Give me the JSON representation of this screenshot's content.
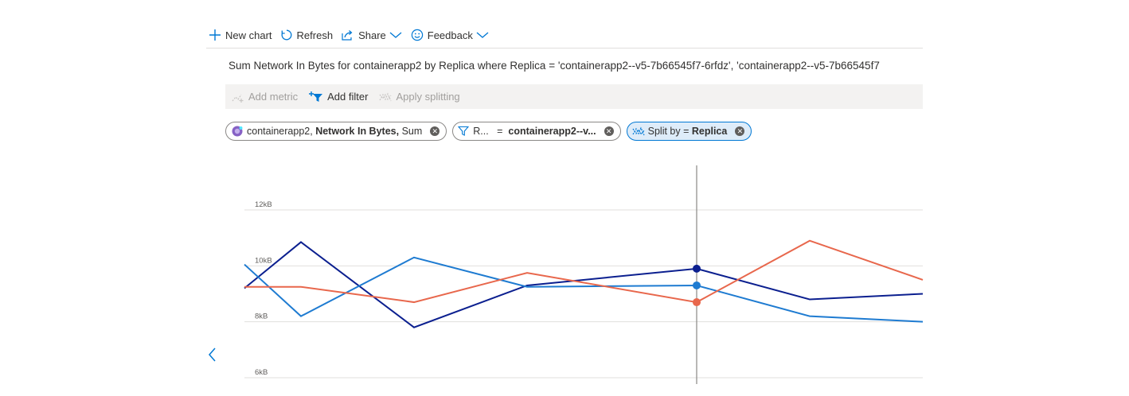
{
  "toolbar": {
    "new_chart": "New chart",
    "refresh": "Refresh",
    "share": "Share",
    "feedback": "Feedback"
  },
  "chart_title": "Sum Network In Bytes for containerapp2 by Replica where Replica = 'containerapp2--v5-7b66545f7-6rfdz', 'containerapp2--v5-7b66545f7",
  "commands": {
    "add_metric": "Add metric",
    "add_filter": "Add filter",
    "apply_splitting": "Apply splitting"
  },
  "pills": {
    "metric_resource": "containerapp2,",
    "metric_name": "Network In Bytes,",
    "metric_agg": "Sum",
    "filter_prop": "R...",
    "filter_op": "=",
    "filter_value": "containerapp2--v...",
    "split_prefix": "Split by =",
    "split_value": "Replica"
  },
  "colors": {
    "accent": "#0078d4",
    "series_dark_blue": "#0b1f8f",
    "series_blue": "#1e7bd1",
    "series_orange": "#e8674c"
  },
  "chart_data": {
    "type": "line",
    "x": [
      0,
      1,
      2,
      3,
      4,
      5,
      6,
      7,
      8,
      9,
      10,
      11,
      12
    ],
    "y_ticks": [
      "12kB",
      "10kB",
      "8kB",
      "6kB"
    ],
    "y_tick_values": [
      12,
      10,
      8,
      6
    ],
    "ylim": [
      5.9,
      13.2
    ],
    "xlim": [
      0,
      12
    ],
    "cursor_x": 8,
    "series": [
      {
        "color": "#0b1f8f",
        "points": [
          [
            0,
            9.2
          ],
          [
            1,
            10.85
          ],
          [
            3,
            7.8
          ],
          [
            5,
            9.3
          ],
          [
            8,
            9.9
          ],
          [
            10,
            8.8
          ],
          [
            12,
            9.0
          ]
        ]
      },
      {
        "color": "#1e7bd1",
        "points": [
          [
            0,
            10.05
          ],
          [
            1,
            8.2
          ],
          [
            3,
            10.3
          ],
          [
            5,
            9.25
          ],
          [
            8,
            9.3
          ],
          [
            10,
            8.2
          ],
          [
            12,
            8.0
          ]
        ]
      },
      {
        "color": "#e8674c",
        "points": [
          [
            0,
            9.25
          ],
          [
            1,
            9.25
          ],
          [
            3,
            8.7
          ],
          [
            5,
            9.75
          ],
          [
            8,
            8.7
          ],
          [
            10,
            10.9
          ],
          [
            12,
            9.5
          ]
        ]
      }
    ],
    "grid": true
  }
}
